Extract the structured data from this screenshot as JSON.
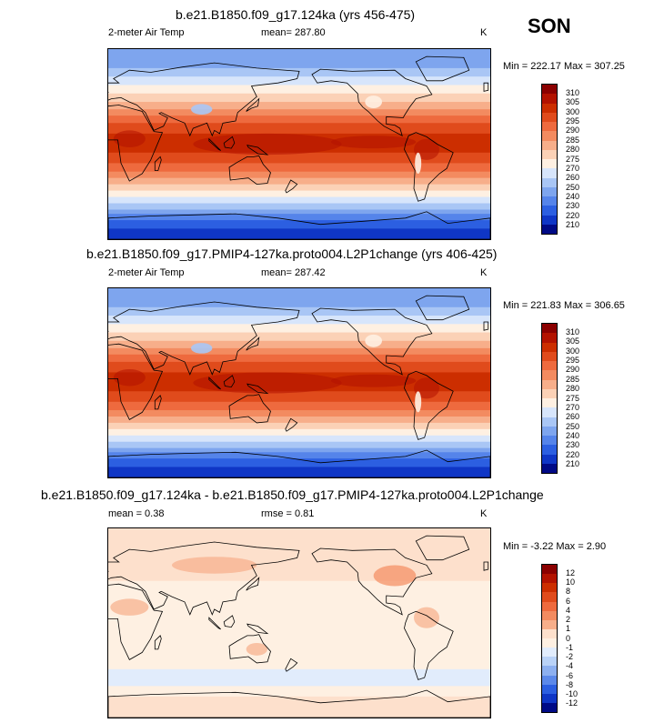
{
  "season": "SON",
  "panels": [
    {
      "title": "b.e21.B1850.f09_g17.124ka (yrs 456-475)",
      "left_label": "2-meter Air Temp",
      "center_label": "mean= 287.80",
      "units": "K",
      "minmax": "Min = 222.17 Max = 307.25",
      "colorbar": {
        "levels": [
          "310",
          "305",
          "300",
          "295",
          "290",
          "285",
          "280",
          "275",
          "270",
          "260",
          "250",
          "240",
          "230",
          "220",
          "210"
        ],
        "colors": [
          "#8b0000",
          "#b31200",
          "#cc2e00",
          "#e04b1c",
          "#ee6a3e",
          "#f38b60",
          "#f7ae8a",
          "#fbd1b6",
          "#fef0e2",
          "#d7e5fb",
          "#a9c6f5",
          "#7ea5ee",
          "#5584ea",
          "#2c5fe1",
          "#0f36c6",
          "#000a86"
        ]
      },
      "map_style": "temperature"
    },
    {
      "title": "b.e21.B1850.f09_g17.PMIP4-127ka.proto004.L2P1change (yrs 406-425)",
      "left_label": "2-meter Air Temp",
      "center_label": "mean= 287.42",
      "units": "K",
      "minmax": "Min = 221.83 Max = 306.65",
      "colorbar": {
        "levels": [
          "310",
          "305",
          "300",
          "295",
          "290",
          "285",
          "280",
          "275",
          "270",
          "260",
          "250",
          "240",
          "230",
          "220",
          "210"
        ],
        "colors": [
          "#8b0000",
          "#b31200",
          "#cc2e00",
          "#e04b1c",
          "#ee6a3e",
          "#f38b60",
          "#f7ae8a",
          "#fbd1b6",
          "#fef0e2",
          "#d7e5fb",
          "#a9c6f5",
          "#7ea5ee",
          "#5584ea",
          "#2c5fe1",
          "#0f36c6",
          "#000a86"
        ]
      },
      "map_style": "temperature"
    },
    {
      "title": "b.e21.B1850.f09_g17.124ka - b.e21.B1850.f09_g17.PMIP4-127ka.proto004.L2P1change",
      "left_label": "mean =   0.38",
      "center_label": "rmse =   0.81",
      "units": "K",
      "minmax": "Min = -3.22 Max =  2.90",
      "colorbar": {
        "levels": [
          "12",
          "10",
          "8",
          "6",
          "4",
          "2",
          "1",
          "0",
          "-1",
          "-2",
          "-4",
          "-6",
          "-8",
          "-10",
          "-12"
        ],
        "colors": [
          "#8b0000",
          "#b31200",
          "#cc2e00",
          "#e04b1c",
          "#ee6a3e",
          "#f38b60",
          "#f7ae8a",
          "#fde0cc",
          "#fef0e2",
          "#e1ecfc",
          "#b9d2f7",
          "#8db0f0",
          "#5c89ea",
          "#2c5fe1",
          "#0f36c6",
          "#000a86"
        ]
      },
      "map_style": "difference"
    }
  ],
  "chart_data": [
    {
      "type": "heatmap",
      "title": "b.e21.B1850.f09_g17.124ka (yrs 456-475)",
      "variable": "2-meter Air Temp",
      "units": "K",
      "mean": 287.8,
      "min": 222.17,
      "max": 307.25,
      "contour_levels": [
        210,
        220,
        230,
        240,
        250,
        260,
        270,
        275,
        280,
        285,
        290,
        295,
        300,
        305,
        310
      ]
    },
    {
      "type": "heatmap",
      "title": "b.e21.B1850.f09_g17.PMIP4-127ka.proto004.L2P1change (yrs 406-425)",
      "variable": "2-meter Air Temp",
      "units": "K",
      "mean": 287.42,
      "min": 221.83,
      "max": 306.65,
      "contour_levels": [
        210,
        220,
        230,
        240,
        250,
        260,
        270,
        275,
        280,
        285,
        290,
        295,
        300,
        305,
        310
      ]
    },
    {
      "type": "heatmap",
      "title": "b.e21.B1850.f09_g17.124ka - b.e21.B1850.f09_g17.PMIP4-127ka.proto004.L2P1change",
      "units": "K",
      "mean": 0.38,
      "rmse": 0.81,
      "min": -3.22,
      "max": 2.9,
      "contour_levels": [
        -12,
        -10,
        -8,
        -6,
        -4,
        -2,
        -1,
        0,
        1,
        2,
        4,
        6,
        8,
        10,
        12
      ]
    }
  ]
}
